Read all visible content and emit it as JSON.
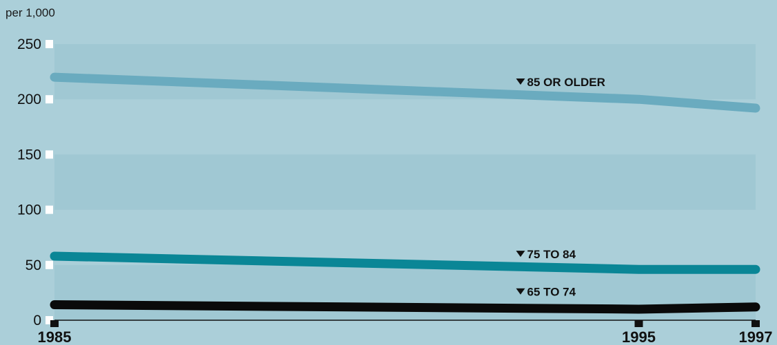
{
  "chart_data": {
    "type": "line",
    "ylabel": "per 1,000",
    "x": [
      1985,
      1995,
      1997
    ],
    "xtick_labels": [
      "1985",
      "1995",
      "1997"
    ],
    "ylim": [
      0,
      250
    ],
    "yticks": [
      0,
      50,
      100,
      150,
      200,
      250
    ],
    "ytick_labels": [
      "0",
      "50",
      "100",
      "150",
      "200",
      "250"
    ],
    "series": [
      {
        "name": "85 OR OLDER",
        "values": [
          220,
          200,
          192
        ],
        "color": "#6aabbf",
        "label_x": 1995,
        "label_y": 212
      },
      {
        "name": "75 TO 84",
        "values": [
          58,
          46,
          46
        ],
        "color": "#0a8696",
        "label_x": 1995,
        "label_y": 56
      },
      {
        "name": "65 TO 74",
        "values": [
          14,
          10,
          12
        ],
        "color": "#0a0a0a",
        "label_x": 1995,
        "label_y": 22
      }
    ],
    "colors": {
      "background": "#abcfd9",
      "band": "#a0c8d3"
    }
  }
}
